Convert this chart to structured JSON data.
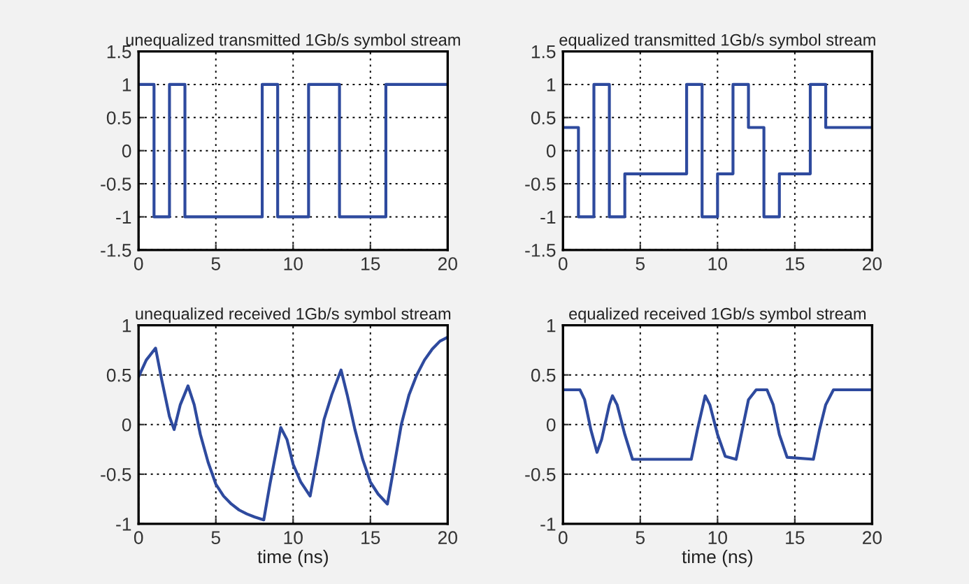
{
  "chart_data": [
    {
      "type": "step",
      "title": "unequalized transmitted 1Gb/s symbol stream",
      "x": [
        0,
        1,
        2,
        3,
        8,
        9,
        11,
        13,
        16,
        20
      ],
      "series": [
        {
          "color": "#2e4a9e",
          "values": [
            1,
            -1,
            1,
            -1,
            1,
            -1,
            1,
            -1,
            1,
            1
          ]
        }
      ],
      "xlim": [
        0,
        20
      ],
      "xticks": [
        0,
        5,
        10,
        15,
        20
      ],
      "ylim": [
        -1.5,
        1.5
      ],
      "yticks": [
        -1.5,
        -1,
        -0.5,
        0,
        0.5,
        1,
        1.5
      ],
      "grid": true,
      "line_style": "solid"
    },
    {
      "type": "step",
      "title": "equalized transmitted 1Gb/s symbol stream",
      "x": [
        0,
        1,
        2,
        3,
        4,
        8,
        9,
        10,
        11,
        12,
        13,
        14,
        16,
        17,
        20
      ],
      "series": [
        {
          "color": "#2e4a9e",
          "values": [
            0.35,
            -1,
            1,
            -1,
            -0.35,
            1,
            -1,
            -0.35,
            1,
            0.35,
            -1,
            -0.35,
            1,
            0.35,
            0.35
          ]
        }
      ],
      "xlim": [
        0,
        20
      ],
      "xticks": [
        0,
        5,
        10,
        15,
        20
      ],
      "ylim": [
        -1.5,
        1.5
      ],
      "yticks": [
        -1.5,
        -1,
        -0.5,
        0,
        0.5,
        1,
        1.5
      ],
      "grid": true,
      "line_style": "solid"
    },
    {
      "type": "line",
      "title": "unequalized received 1Gb/s symbol stream",
      "xlabel": "time (ns)",
      "x": [
        0,
        0.5,
        1.1,
        1.5,
        2.0,
        2.3,
        2.7,
        3.2,
        3.6,
        4,
        4.5,
        5,
        5.5,
        6,
        6.5,
        7,
        7.5,
        8.1,
        8.5,
        9.2,
        9.6,
        10,
        10.5,
        11.1,
        11.6,
        12,
        12.5,
        13.1,
        13.5,
        14,
        14.5,
        15,
        15.5,
        16.1,
        16.5,
        17,
        17.5,
        18,
        18.5,
        19,
        19.5,
        20
      ],
      "series": [
        {
          "color": "#2e4a9e",
          "values": [
            0.48,
            0.65,
            0.77,
            0.45,
            0.08,
            -0.05,
            0.2,
            0.39,
            0.2,
            -0.1,
            -0.38,
            -0.6,
            -0.72,
            -0.8,
            -0.86,
            -0.9,
            -0.93,
            -0.96,
            -0.6,
            -0.03,
            -0.15,
            -0.4,
            -0.58,
            -0.72,
            -0.3,
            0.05,
            0.3,
            0.55,
            0.3,
            -0.05,
            -0.35,
            -0.58,
            -0.7,
            -0.8,
            -0.45,
            0,
            0.3,
            0.5,
            0.65,
            0.76,
            0.84,
            0.88
          ]
        }
      ],
      "xlim": [
        0,
        20
      ],
      "xticks": [
        0,
        5,
        10,
        15,
        20
      ],
      "ylim": [
        -1,
        1
      ],
      "yticks": [
        -1,
        -0.5,
        0,
        0.5,
        1
      ],
      "grid": true,
      "line_style": "solid"
    },
    {
      "type": "line",
      "title": "equalized received 1Gb/s symbol stream",
      "xlabel": "time (ns)",
      "x": [
        0,
        1.1,
        1.4,
        1.8,
        2.2,
        2.5,
        3,
        3.2,
        3.5,
        4,
        4.5,
        8.3,
        8.7,
        9.2,
        9.5,
        10,
        10.5,
        11.2,
        11.6,
        12,
        12.5,
        13.2,
        13.6,
        14,
        14.5,
        16.2,
        16.6,
        17,
        17.5,
        20
      ],
      "series": [
        {
          "color": "#2e4a9e",
          "values": [
            0.35,
            0.35,
            0.25,
            -0.05,
            -0.28,
            -0.15,
            0.2,
            0.29,
            0.2,
            -0.1,
            -0.35,
            -0.35,
            -0.05,
            0.29,
            0.2,
            -0.1,
            -0.32,
            -0.35,
            -0.05,
            0.25,
            0.35,
            0.35,
            0.2,
            -0.1,
            -0.33,
            -0.35,
            -0.05,
            0.2,
            0.35,
            0.35
          ]
        }
      ],
      "xlim": [
        0,
        20
      ],
      "xticks": [
        0,
        5,
        10,
        15,
        20
      ],
      "ylim": [
        -1,
        1
      ],
      "yticks": [
        -1,
        -0.5,
        0,
        0.5,
        1
      ],
      "grid": true,
      "line_style": "solid"
    }
  ]
}
